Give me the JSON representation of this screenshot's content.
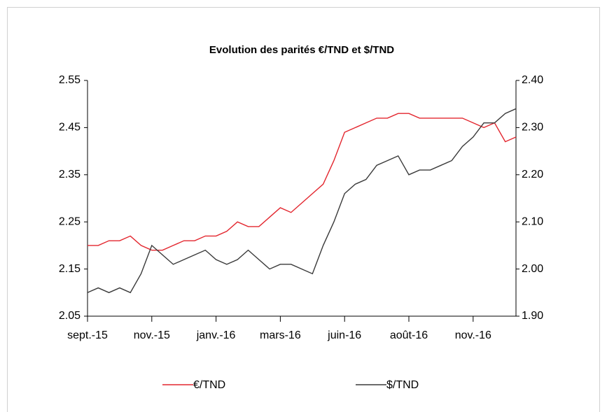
{
  "chart_data": {
    "type": "line",
    "title": "Evolution des parités €/TND et $/TND",
    "categories": [
      "sept.-15",
      null,
      null,
      null,
      null,
      null,
      "nov.-15",
      null,
      null,
      null,
      null,
      null,
      "janv.-16",
      null,
      null,
      null,
      null,
      null,
      "mars-16",
      null,
      null,
      null,
      null,
      null,
      "juin-16",
      null,
      null,
      null,
      null,
      null,
      "août-16",
      null,
      null,
      null,
      null,
      null,
      "nov.-16",
      null,
      null,
      null,
      null
    ],
    "series": [
      {
        "name": "€/TND",
        "color": "#e3262e",
        "axis": "y",
        "values": [
          2.2,
          2.2,
          2.21,
          2.21,
          2.22,
          2.2,
          2.19,
          2.19,
          2.2,
          2.21,
          2.21,
          2.22,
          2.22,
          2.23,
          2.25,
          2.24,
          2.24,
          2.26,
          2.28,
          2.27,
          2.29,
          2.31,
          2.33,
          2.38,
          2.44,
          2.45,
          2.46,
          2.47,
          2.47,
          2.48,
          2.48,
          2.47,
          2.47,
          2.47,
          2.47,
          2.47,
          2.46,
          2.45,
          2.46,
          2.42,
          2.43
        ]
      },
      {
        "name": "$/TND",
        "color": "#3a3a3a",
        "axis": "y2",
        "values": [
          1.95,
          1.96,
          1.95,
          1.96,
          1.95,
          1.99,
          2.05,
          2.03,
          2.01,
          2.02,
          2.03,
          2.04,
          2.02,
          2.01,
          2.02,
          2.04,
          2.02,
          2.0,
          2.01,
          2.01,
          2.0,
          1.99,
          2.05,
          2.1,
          2.16,
          2.18,
          2.19,
          2.22,
          2.23,
          2.24,
          2.2,
          2.21,
          2.21,
          2.22,
          2.23,
          2.26,
          2.28,
          2.31,
          2.31,
          2.33,
          2.34
        ]
      }
    ],
    "ylim": [
      2.05,
      2.55
    ],
    "yticks": [
      {
        "value": 2.05,
        "label": "2.05"
      },
      {
        "value": 2.15,
        "label": "2.15"
      },
      {
        "value": 2.25,
        "label": "2.25"
      },
      {
        "value": 2.35,
        "label": "2.35"
      },
      {
        "value": 2.45,
        "label": "2.45"
      },
      {
        "value": 2.55,
        "label": "2.55"
      }
    ],
    "y2lim": [
      1.9,
      2.4
    ],
    "y2ticks": [
      {
        "value": 1.9,
        "label": "1.90"
      },
      {
        "value": 2.0,
        "label": "2.00"
      },
      {
        "value": 2.1,
        "label": "2.10"
      },
      {
        "value": 2.2,
        "label": "2.20"
      },
      {
        "value": 2.3,
        "label": "2.30"
      },
      {
        "value": 2.4,
        "label": "2.40"
      }
    ],
    "grid": false,
    "legend": "bottom"
  }
}
